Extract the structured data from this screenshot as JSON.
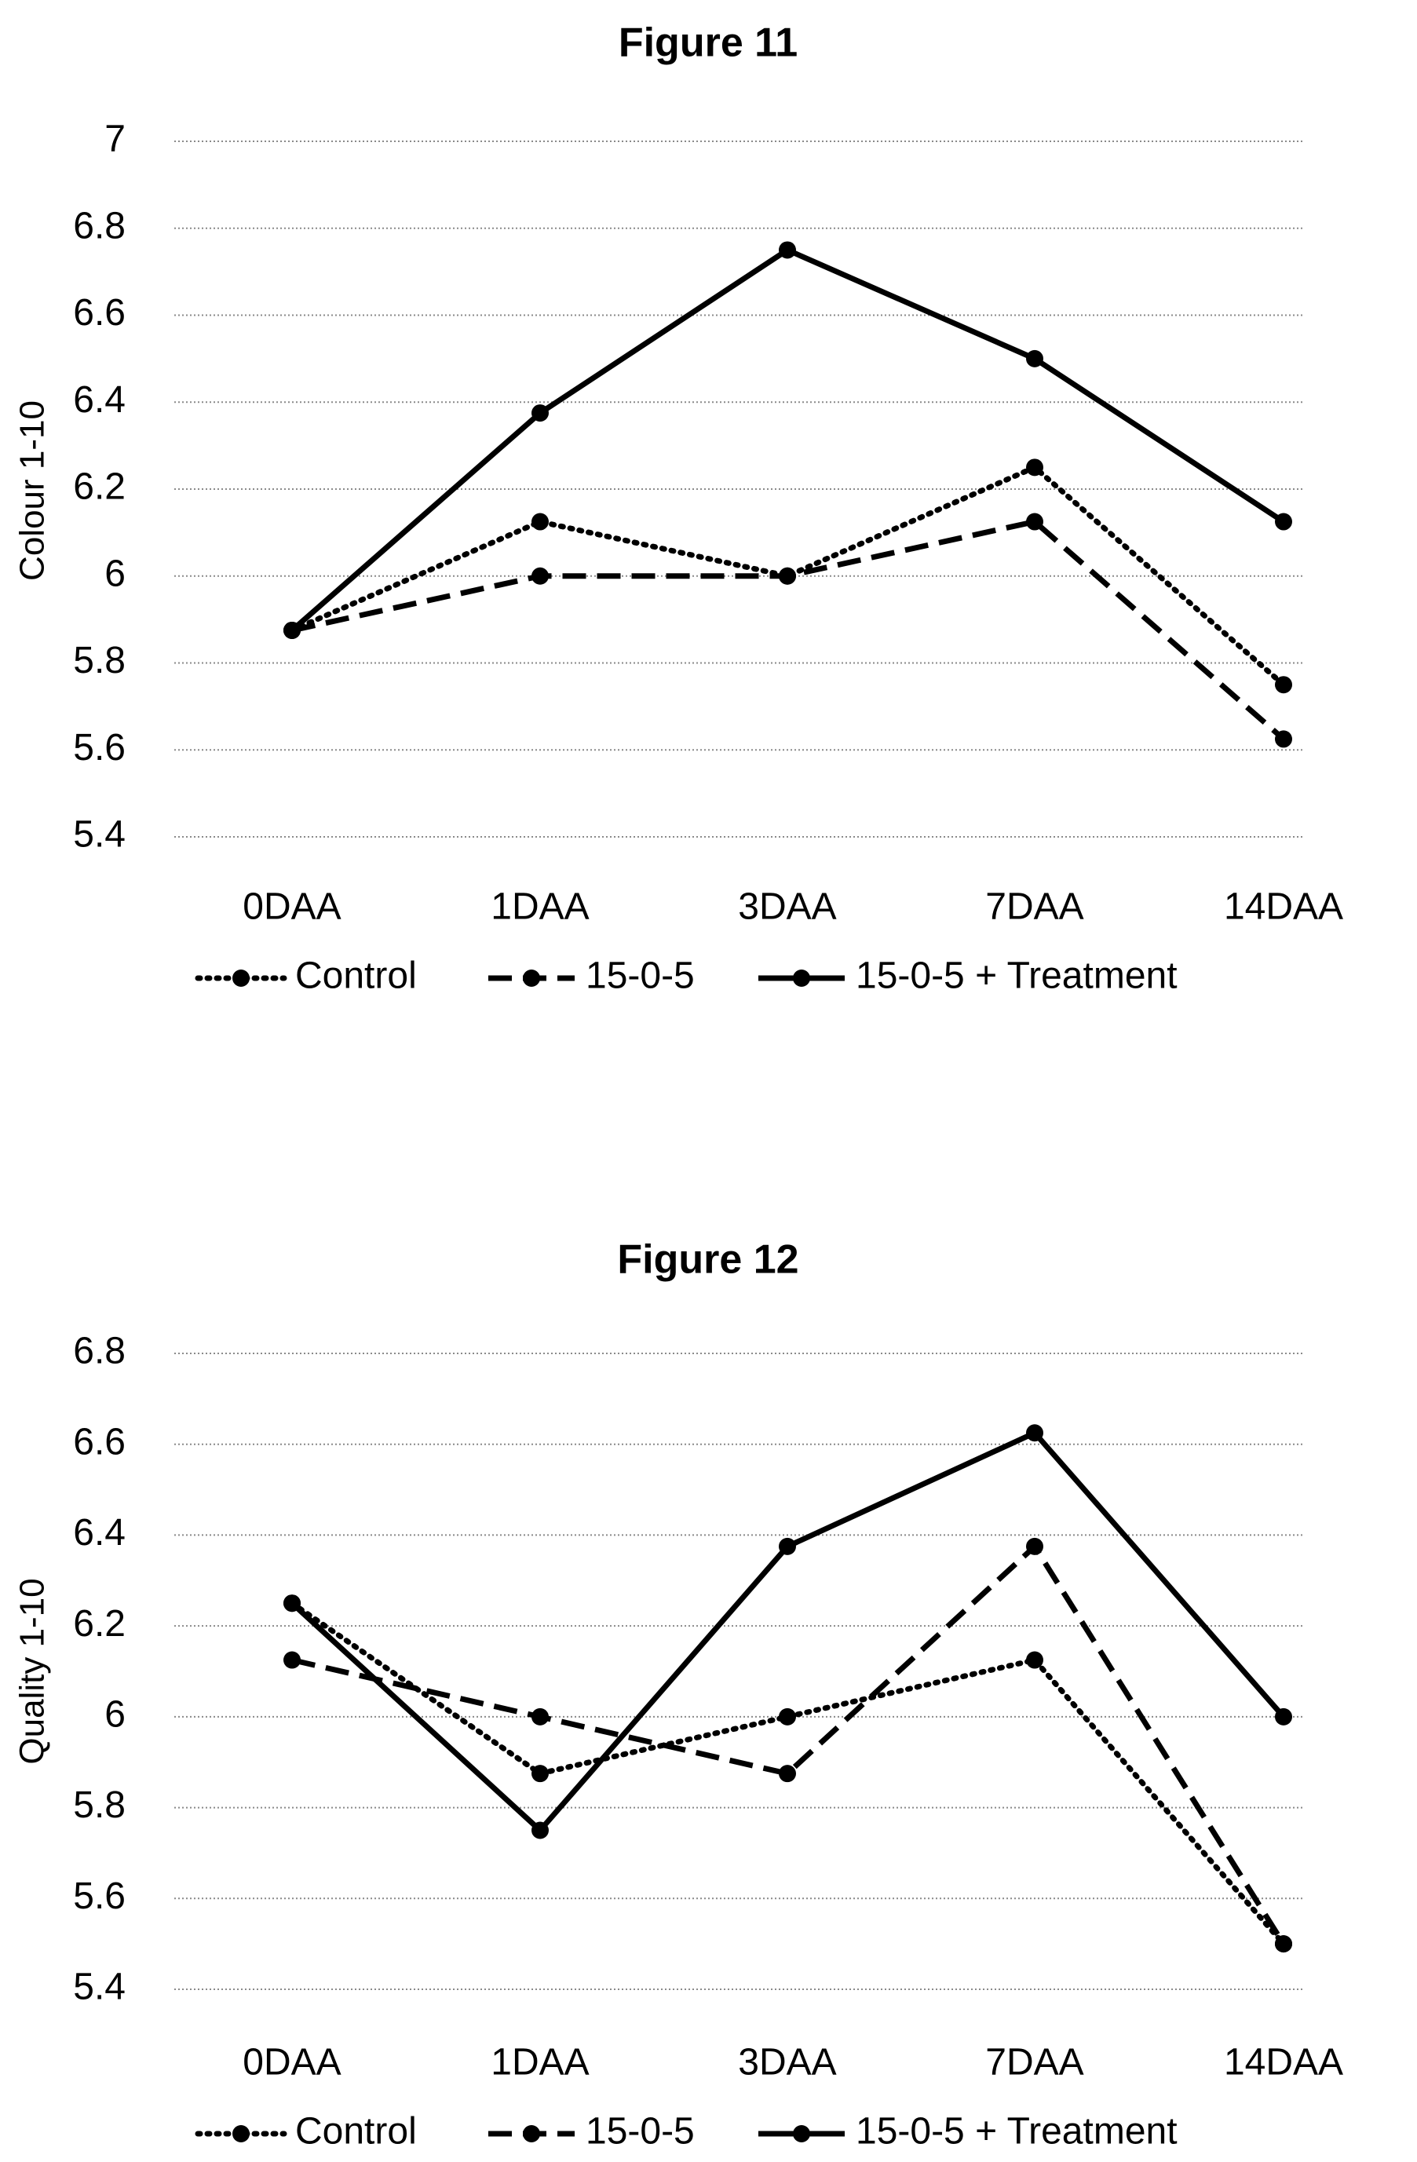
{
  "chart_data": [
    {
      "type": "line",
      "title": "Figure 11",
      "ylabel": "Colour 1-10",
      "xlabel": "",
      "categories": [
        "0DAA",
        "1DAA",
        "3DAA",
        "7DAA",
        "14DAA"
      ],
      "ylim": [
        5.4,
        7.0
      ],
      "yticks": [
        "5.4",
        "5.6",
        "5.8",
        "6",
        "6.2",
        "6.4",
        "6.6",
        "6.8",
        "7"
      ],
      "grid": true,
      "legend_position": "bottom",
      "series": [
        {
          "name": "Control",
          "style": "dotted",
          "values": [
            5.875,
            6.125,
            6.0,
            6.25,
            5.75
          ]
        },
        {
          "name": "15-0-5",
          "style": "dashed",
          "values": [
            5.875,
            6.0,
            6.0,
            6.125,
            5.625
          ]
        },
        {
          "name": "15-0-5 + Treatment",
          "style": "solid",
          "values": [
            5.875,
            6.375,
            6.75,
            6.5,
            6.125
          ]
        }
      ]
    },
    {
      "type": "line",
      "title": "Figure 12",
      "ylabel": "Quality 1-10",
      "xlabel": "",
      "categories": [
        "0DAA",
        "1DAA",
        "3DAA",
        "7DAA",
        "14DAA"
      ],
      "ylim": [
        5.4,
        6.8
      ],
      "yticks": [
        "5.4",
        "5.6",
        "5.8",
        "6",
        "6.2",
        "6.4",
        "6.6",
        "6.8"
      ],
      "grid": true,
      "legend_position": "bottom",
      "series": [
        {
          "name": "Control",
          "style": "dotted",
          "values": [
            6.25,
            5.875,
            6.0,
            6.125,
            5.5
          ]
        },
        {
          "name": "15-0-5",
          "style": "dashed",
          "values": [
            6.125,
            6.0,
            5.875,
            6.375,
            5.5
          ]
        },
        {
          "name": "15-0-5 + Treatment",
          "style": "solid",
          "values": [
            6.25,
            5.75,
            6.375,
            6.625,
            6.0
          ]
        }
      ]
    }
  ],
  "colors": {
    "line": "#000000",
    "grid": "#8a8a8a",
    "background": "#ffffff"
  }
}
